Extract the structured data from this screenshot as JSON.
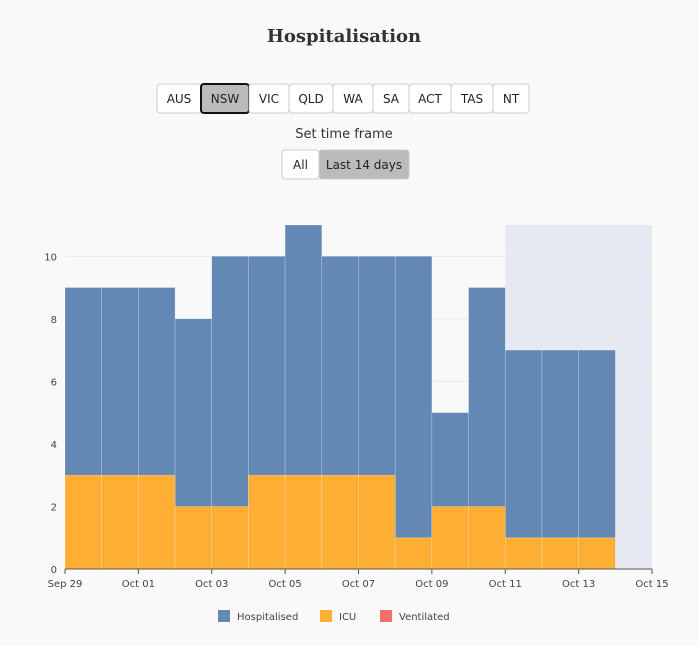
{
  "controls": {
    "regions": [
      "AUS",
      "NSW",
      "VIC",
      "QLD",
      "WA",
      "SA",
      "ACT",
      "TAS",
      "NT"
    ],
    "selected_region": 1,
    "timeframe_label": "Set time frame",
    "timeframes": [
      "All",
      "Last 14 days"
    ],
    "selected_timeframe": 1
  },
  "chart_data": {
    "type": "bar",
    "title": "Hospitalisation",
    "x": [
      0,
      1,
      2,
      3,
      4,
      5,
      6,
      7,
      8,
      9,
      10,
      11,
      12,
      13,
      14
    ],
    "series": [
      {
        "name": "Hospitalised",
        "color": "#6388b4",
        "values": [
          9,
          9,
          9,
          8,
          10,
          10,
          11,
          10,
          10,
          10,
          5,
          9,
          7,
          7,
          7
        ]
      },
      {
        "name": "ICU",
        "color": "#ffae34",
        "values": [
          3,
          3,
          3,
          2,
          2,
          3,
          3,
          3,
          3,
          1,
          2,
          2,
          1,
          1,
          1
        ]
      },
      {
        "name": "Ventilated",
        "color": "#ef6f6a",
        "values": [
          0,
          0,
          0,
          0,
          0,
          0,
          0,
          0,
          0,
          0,
          0,
          0,
          0,
          0,
          0
        ]
      }
    ],
    "xlim": [
      0,
      16
    ],
    "xticks": [
      {
        "value": 0,
        "label": "Sep 29"
      },
      {
        "value": 2,
        "label": "Oct 01"
      },
      {
        "value": 4,
        "label": "Oct 03"
      },
      {
        "value": 6,
        "label": "Oct 05"
      },
      {
        "value": 8,
        "label": "Oct 07"
      },
      {
        "value": 10,
        "label": "Oct 09"
      },
      {
        "value": 12,
        "label": "Oct 11"
      },
      {
        "value": 14,
        "label": "Oct 13"
      },
      {
        "value": 16,
        "label": "Oct 15"
      }
    ],
    "ylim": [
      0,
      11
    ],
    "yticks": [
      0,
      2,
      4,
      6,
      8,
      10
    ],
    "grid": true,
    "shaded_range": [
      12,
      16
    ],
    "shade_color": "#e6e9f2"
  }
}
